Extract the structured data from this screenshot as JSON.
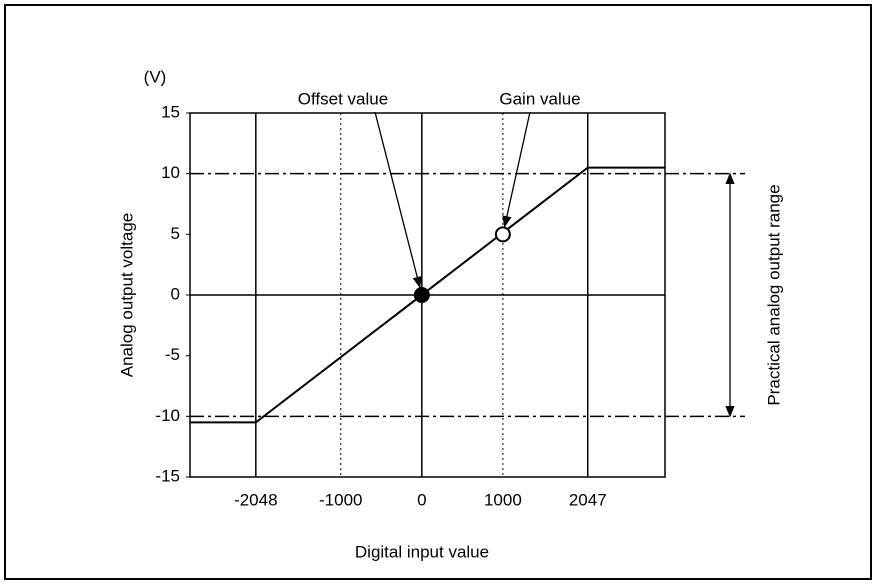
{
  "chart_data": {
    "type": "line",
    "y_unit": "(V)",
    "xlabel": "Digital input value",
    "ylabel": "Analog output voltage",
    "x": [
      -2860,
      -2048,
      2047,
      3000
    ],
    "series": [
      {
        "color": "#000000",
        "values": [
          -10.5,
          -10.5,
          10.5,
          10.5
        ]
      }
    ],
    "xlim": [
      -2860,
      3000
    ],
    "ylim": [
      -15,
      15
    ],
    "xticks": [
      -2048,
      -1000,
      0,
      1000,
      2047
    ],
    "yticks": [
      15,
      10,
      5,
      0,
      -5,
      -10,
      -15
    ],
    "xgrid_styles": [
      "solid",
      "dotted",
      "solid",
      "dotted",
      "solid"
    ],
    "reference_lines": [
      {
        "value": 10,
        "style": "dash-dot"
      },
      {
        "value": 0,
        "style": "solid"
      },
      {
        "value": -10,
        "style": "dash-dot"
      }
    ],
    "annotations": [
      {
        "text": "Offset value",
        "x": 0,
        "y": 0,
        "marker": "filled"
      },
      {
        "text": "Gain value",
        "x": 1000,
        "y": 5,
        "marker": "open"
      }
    ],
    "range_annotation": {
      "text": "Practical analog output range",
      "from": 10,
      "to": -10
    }
  }
}
